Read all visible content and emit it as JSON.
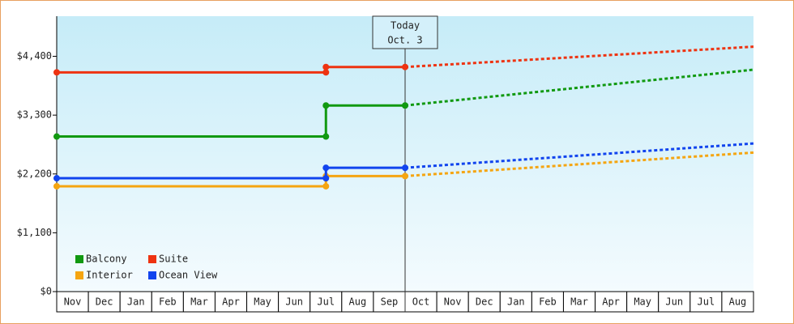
{
  "chart_data": {
    "type": "line",
    "categories": [
      "Nov",
      "Dec",
      "Jan",
      "Feb",
      "Mar",
      "Apr",
      "May",
      "Jun",
      "Jul",
      "Aug",
      "Sep",
      "Oct",
      "Nov",
      "Dec",
      "Jan",
      "Feb",
      "Mar",
      "Apr",
      "May",
      "Jun",
      "Jul",
      "Aug"
    ],
    "xlim": [
      0,
      22
    ],
    "ylim": [
      0,
      5150
    ],
    "yticks": [
      {
        "value": 0,
        "label": "$0"
      },
      {
        "value": 1100,
        "label": "$1,100"
      },
      {
        "value": 2200,
        "label": "$2,200"
      },
      {
        "value": 3300,
        "label": "$3,300"
      },
      {
        "value": 4400,
        "label": "$4,400"
      }
    ],
    "today": {
      "x": 11,
      "label": [
        "Today",
        "Oct. 3"
      ]
    },
    "series": [
      {
        "name": "Balcony",
        "color": "#119911",
        "x": [
          0,
          8.5,
          8.5,
          11
        ],
        "values": [
          2900,
          2900,
          3480,
          3480
        ],
        "projection_x": [
          11,
          22
        ],
        "projection_values": [
          3480,
          4150
        ]
      },
      {
        "name": "Suite",
        "color": "#ee3311",
        "x": [
          0,
          8.5,
          8.5,
          11
        ],
        "values": [
          4100,
          4100,
          4200,
          4200
        ],
        "projection_x": [
          11,
          22
        ],
        "projection_values": [
          4200,
          4580
        ]
      },
      {
        "name": "Interior",
        "color": "#f5a511",
        "x": [
          0,
          8.5,
          8.5,
          11
        ],
        "values": [
          1970,
          1970,
          2160,
          2160
        ],
        "projection_x": [
          11,
          22
        ],
        "projection_values": [
          2160,
          2600
        ]
      },
      {
        "name": "Ocean View",
        "color": "#1144ee",
        "x": [
          0,
          8.5,
          8.5,
          11
        ],
        "values": [
          2120,
          2120,
          2315,
          2315
        ],
        "projection_x": [
          11,
          22
        ],
        "projection_values": [
          2315,
          2770
        ]
      }
    ]
  }
}
